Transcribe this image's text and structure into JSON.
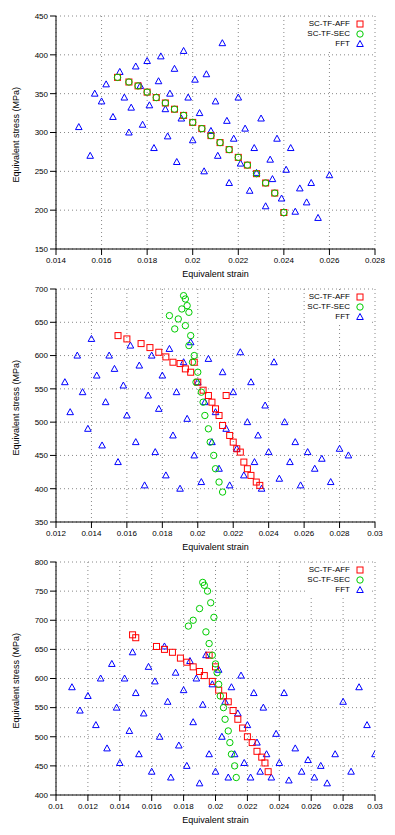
{
  "chart_data": [
    {
      "type": "scatter",
      "x_label": "Equivalent strain",
      "y_label": "Equivalent stress (MPa)",
      "xlim": [
        0.014,
        0.028
      ],
      "xticks": [
        0.014,
        0.016,
        0.018,
        0.02,
        0.022,
        0.024,
        0.026,
        0.028
      ],
      "ylim": [
        150,
        450
      ],
      "yticks": [
        150,
        200,
        250,
        300,
        350,
        400,
        450
      ],
      "grid": true,
      "legend": "top-right",
      "series": [
        {
          "name": "SC-TF-AFF",
          "color": "#ff0000",
          "marker": "square_open",
          "x": [
            0.0167,
            0.0172,
            0.0176,
            0.018,
            0.0184,
            0.0188,
            0.0192,
            0.0196,
            0.02,
            0.0204,
            0.0208,
            0.0212,
            0.0216,
            0.022,
            0.0224,
            0.0228,
            0.0232,
            0.0236,
            0.024
          ],
          "values": [
            371,
            365,
            360,
            352,
            345,
            338,
            330,
            322,
            313,
            305,
            296,
            287,
            278,
            268,
            258,
            247,
            235,
            222,
            197
          ]
        },
        {
          "name": "SC-TF-SEC",
          "color": "#00cc00",
          "marker": "circle_open",
          "x": [
            0.0167,
            0.0172,
            0.0176,
            0.018,
            0.0184,
            0.0188,
            0.0192,
            0.0196,
            0.02,
            0.0204,
            0.0208,
            0.0212,
            0.0216,
            0.022,
            0.0224,
            0.0228,
            0.0232,
            0.0236,
            0.024
          ],
          "values": [
            371,
            365,
            360,
            352,
            345,
            338,
            330,
            322,
            313,
            305,
            296,
            287,
            278,
            268,
            258,
            247,
            235,
            222,
            197
          ]
        },
        {
          "name": "FFT",
          "color": "#0000ff",
          "marker": "triangle_open",
          "x": [
            0.015,
            0.0155,
            0.0157,
            0.016,
            0.0162,
            0.0165,
            0.0168,
            0.017,
            0.0172,
            0.0173,
            0.0175,
            0.0177,
            0.0178,
            0.018,
            0.0181,
            0.0183,
            0.0185,
            0.0186,
            0.0188,
            0.0189,
            0.019,
            0.0192,
            0.0193,
            0.0195,
            0.0196,
            0.0198,
            0.02,
            0.0201,
            0.0203,
            0.0205,
            0.0206,
            0.0208,
            0.021,
            0.0211,
            0.0213,
            0.0215,
            0.0216,
            0.0218,
            0.022,
            0.0221,
            0.0223,
            0.0225,
            0.0227,
            0.0228,
            0.023,
            0.0232,
            0.0234,
            0.0235,
            0.0237,
            0.0239,
            0.0241,
            0.0243,
            0.0245,
            0.0247,
            0.025,
            0.0252,
            0.0255,
            0.026
          ],
          "values": [
            307,
            270,
            350,
            340,
            362,
            320,
            378,
            345,
            300,
            332,
            385,
            360,
            310,
            392,
            335,
            280,
            366,
            398,
            330,
            295,
            350,
            382,
            262,
            318,
            405,
            345,
            290,
            368,
            325,
            250,
            375,
            302,
            340,
            270,
            415,
            315,
            235,
            292,
            345,
            260,
            305,
            225,
            280,
            248,
            318,
            205,
            265,
            240,
            292,
            215,
            252,
            280,
            198,
            228,
            210,
            235,
            190,
            245
          ]
        }
      ]
    },
    {
      "type": "scatter",
      "x_label": "Equivalent strain",
      "y_label": "Equivalent stress (MPa)",
      "xlim": [
        0.012,
        0.03
      ],
      "xticks": [
        0.012,
        0.014,
        0.016,
        0.018,
        0.02,
        0.022,
        0.024,
        0.026,
        0.028,
        0.03
      ],
      "ylim": [
        350,
        700
      ],
      "yticks": [
        350,
        400,
        450,
        500,
        550,
        600,
        650,
        700
      ],
      "grid": true,
      "legend": "top-right",
      "series": [
        {
          "name": "SC-TF-AFF",
          "color": "#ff0000",
          "marker": "square_open",
          "x": [
            0.0155,
            0.016,
            0.0168,
            0.0173,
            0.0178,
            0.0182,
            0.0186,
            0.019,
            0.0193,
            0.0196,
            0.0198,
            0.02,
            0.0203,
            0.0206,
            0.0208,
            0.021,
            0.0212,
            0.0214,
            0.0216,
            0.0218,
            0.022,
            0.0222,
            0.0224,
            0.0226,
            0.0228,
            0.023,
            0.0233,
            0.0235
          ],
          "values": [
            630,
            625,
            618,
            612,
            605,
            598,
            590,
            588,
            580,
            575,
            590,
            560,
            548,
            540,
            530,
            520,
            510,
            495,
            540,
            480,
            470,
            460,
            455,
            440,
            430,
            420,
            410,
            405
          ]
        },
        {
          "name": "SC-TF-SEC",
          "color": "#00cc00",
          "marker": "circle_open",
          "x": [
            0.0184,
            0.0187,
            0.0189,
            0.0191,
            0.0192,
            0.0193,
            0.0194,
            0.0195,
            0.0193,
            0.0196,
            0.0195,
            0.0198,
            0.0197,
            0.02,
            0.0199,
            0.0202,
            0.0203,
            0.0204,
            0.0206,
            0.0207,
            0.0209,
            0.021,
            0.0212,
            0.0214
          ],
          "values": [
            660,
            640,
            655,
            670,
            690,
            685,
            675,
            665,
            645,
            630,
            615,
            600,
            590,
            575,
            560,
            545,
            530,
            510,
            490,
            470,
            450,
            430,
            410,
            395
          ]
        },
        {
          "name": "FFT",
          "color": "#0000ff",
          "marker": "triangle_open",
          "x": [
            0.0125,
            0.0128,
            0.0132,
            0.0135,
            0.0138,
            0.014,
            0.0143,
            0.0146,
            0.0148,
            0.015,
            0.0153,
            0.0155,
            0.0158,
            0.016,
            0.0162,
            0.0165,
            0.0167,
            0.017,
            0.0172,
            0.0174,
            0.0176,
            0.0178,
            0.018,
            0.0182,
            0.0184,
            0.0186,
            0.0188,
            0.019,
            0.0192,
            0.0194,
            0.0196,
            0.0198,
            0.02,
            0.0202,
            0.0204,
            0.0206,
            0.0208,
            0.021,
            0.0212,
            0.0214,
            0.0216,
            0.0218,
            0.022,
            0.0222,
            0.0224,
            0.0226,
            0.0228,
            0.023,
            0.0232,
            0.0234,
            0.0236,
            0.0238,
            0.024,
            0.0243,
            0.0246,
            0.0249,
            0.0252,
            0.0255,
            0.0258,
            0.0262,
            0.0266,
            0.027,
            0.0275,
            0.028,
            0.0285
          ],
          "values": [
            560,
            515,
            600,
            545,
            490,
            625,
            570,
            465,
            530,
            600,
            580,
            440,
            555,
            510,
            615,
            470,
            585,
            405,
            540,
            600,
            455,
            520,
            570,
            420,
            610,
            480,
            545,
            400,
            590,
            505,
            620,
            450,
            560,
            410,
            530,
            595,
            470,
            515,
            430,
            575,
            490,
            405,
            545,
            460,
            605,
            420,
            500,
            560,
            440,
            480,
            400,
            525,
            455,
            590,
            415,
            500,
            440,
            470,
            405,
            455,
            430,
            445,
            410,
            460,
            450
          ]
        }
      ]
    },
    {
      "type": "scatter",
      "x_label": "Equivalent strain",
      "y_label": "Equivalent stress (MPa)",
      "xlim": [
        0.01,
        0.03
      ],
      "xticks": [
        0.01,
        0.012,
        0.014,
        0.016,
        0.018,
        0.02,
        0.022,
        0.024,
        0.026,
        0.028,
        0.03
      ],
      "ylim": [
        400,
        800
      ],
      "yticks": [
        400,
        450,
        500,
        550,
        600,
        650,
        700,
        750,
        800
      ],
      "grid": true,
      "legend": "top-right",
      "series": [
        {
          "name": "SC-TF-AFF",
          "color": "#ff0000",
          "marker": "square_open",
          "x": [
            0.0148,
            0.015,
            0.0163,
            0.0168,
            0.0173,
            0.0178,
            0.0182,
            0.0186,
            0.019,
            0.0193,
            0.0196,
            0.0198,
            0.02,
            0.0202,
            0.0205,
            0.0208,
            0.0211,
            0.0214,
            0.0217,
            0.022,
            0.0223,
            0.0226,
            0.0229,
            0.0231,
            0.0233
          ],
          "values": [
            675,
            670,
            655,
            650,
            645,
            635,
            628,
            620,
            612,
            605,
            640,
            595,
            620,
            580,
            570,
            560,
            545,
            530,
            515,
            500,
            490,
            475,
            465,
            455,
            440
          ]
        },
        {
          "name": "SC-TF-SEC",
          "color": "#00cc00",
          "marker": "circle_open",
          "x": [
            0.0183,
            0.0186,
            0.019,
            0.0192,
            0.0193,
            0.0195,
            0.0197,
            0.0199,
            0.0194,
            0.0196,
            0.0198,
            0.02,
            0.0201,
            0.0202,
            0.0203,
            0.0205,
            0.0206,
            0.0208,
            0.0209,
            0.021,
            0.0212,
            0.0213
          ],
          "values": [
            690,
            700,
            720,
            765,
            760,
            750,
            730,
            705,
            680,
            660,
            640,
            625,
            610,
            590,
            570,
            550,
            530,
            510,
            490,
            470,
            450,
            430
          ]
        },
        {
          "name": "FFT",
          "color": "#0000ff",
          "marker": "triangle_open",
          "x": [
            0.011,
            0.0115,
            0.012,
            0.0125,
            0.0128,
            0.0132,
            0.0135,
            0.0138,
            0.014,
            0.0143,
            0.0146,
            0.0148,
            0.015,
            0.0152,
            0.0155,
            0.0158,
            0.016,
            0.0162,
            0.0165,
            0.0168,
            0.017,
            0.0172,
            0.0175,
            0.0177,
            0.018,
            0.0182,
            0.0184,
            0.0186,
            0.0188,
            0.019,
            0.0192,
            0.0194,
            0.0196,
            0.0198,
            0.02,
            0.0202,
            0.0204,
            0.0206,
            0.0208,
            0.021,
            0.0212,
            0.0214,
            0.0216,
            0.0218,
            0.022,
            0.0222,
            0.0224,
            0.0226,
            0.0228,
            0.023,
            0.0232,
            0.0235,
            0.0238,
            0.024,
            0.0243,
            0.0246,
            0.025,
            0.0254,
            0.0258,
            0.0262,
            0.0266,
            0.027,
            0.0275,
            0.028,
            0.0285,
            0.029,
            0.0295,
            0.03
          ],
          "values": [
            585,
            545,
            570,
            520,
            600,
            480,
            625,
            550,
            455,
            600,
            510,
            645,
            575,
            470,
            540,
            620,
            440,
            595,
            500,
            655,
            560,
            430,
            610,
            485,
            580,
            450,
            630,
            525,
            600,
            420,
            555,
            640,
            470,
            590,
            440,
            615,
            500,
            560,
            430,
            585,
            470,
            540,
            605,
            455,
            520,
            430,
            575,
            490,
            440,
            550,
            470,
            430,
            505,
            455,
            575,
            425,
            480,
            440,
            460,
            430,
            450,
            420,
            470,
            560,
            440,
            585,
            520,
            470
          ]
        }
      ]
    }
  ]
}
